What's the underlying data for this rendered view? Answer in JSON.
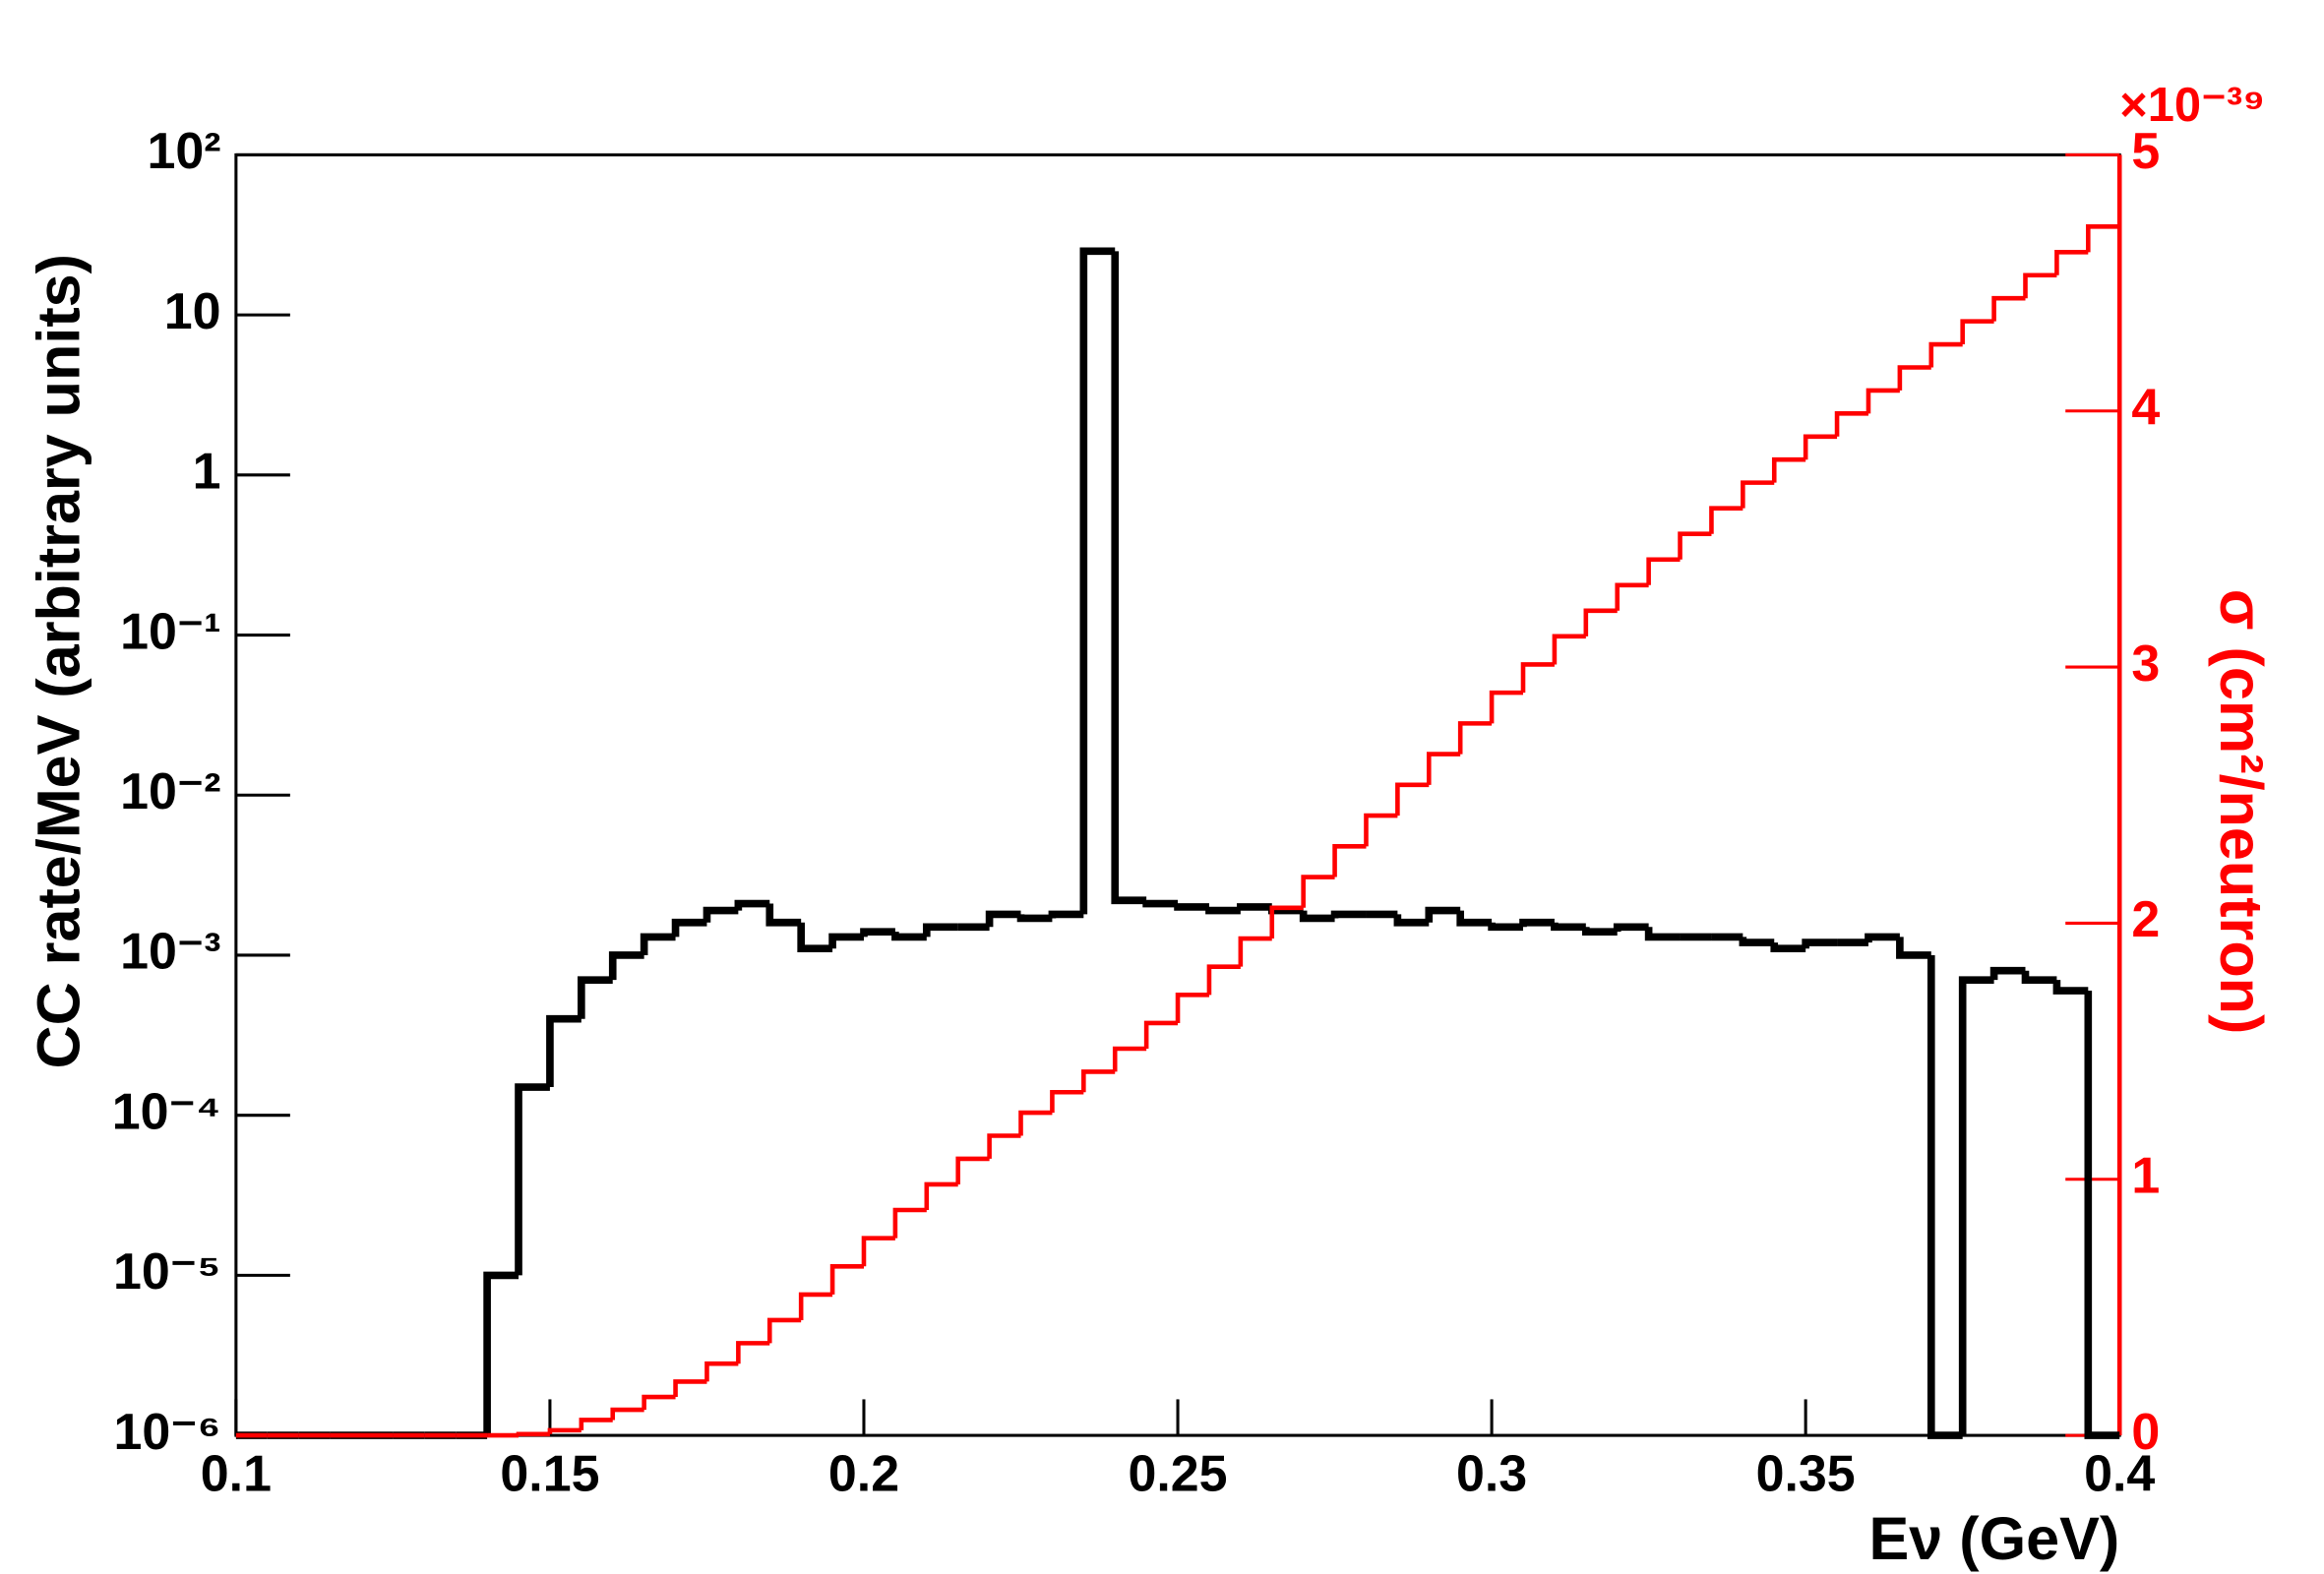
{
  "chart_data": {
    "type": "histogram",
    "x_label": "Eν (GeV)",
    "y_label": "CC rate/MeV (arbitrary units)",
    "y2_label": "σ (cm²/neutron)",
    "y2_exponent": "×10⁻³⁹",
    "bins": [
      0.1,
      0.105,
      0.11,
      0.115,
      0.12,
      0.125,
      0.13,
      0.135,
      0.14,
      0.145,
      0.15,
      0.155,
      0.16,
      0.165,
      0.17,
      0.175,
      0.18,
      0.185,
      0.19,
      0.195,
      0.2,
      0.205,
      0.21,
      0.215,
      0.22,
      0.225,
      0.23,
      0.235,
      0.24,
      0.245,
      0.25,
      0.255,
      0.26,
      0.265,
      0.27,
      0.275,
      0.28,
      0.285,
      0.29,
      0.295,
      0.3,
      0.305,
      0.31,
      0.315,
      0.32,
      0.325,
      0.33,
      0.335,
      0.34,
      0.345,
      0.35,
      0.355,
      0.36,
      0.365,
      0.37,
      0.375,
      0.38,
      0.385,
      0.39,
      0.395,
      0.4
    ],
    "series": [
      {
        "color": "#000000",
        "axis": "y",
        "values": [
          0,
          0,
          0,
          0,
          0,
          0,
          0,
          0,
          1e-05,
          0.00015,
          0.0004,
          0.0007,
          0.001,
          0.0013,
          0.0016,
          0.0019,
          0.0021,
          0.0016,
          0.0011,
          0.0013,
          0.0014,
          0.0013,
          0.0015,
          0.0015,
          0.0018,
          0.0017,
          0.0018,
          25,
          0.0022,
          0.0021,
          0.002,
          0.0019,
          0.002,
          0.0019,
          0.0017,
          0.0018,
          0.0018,
          0.0016,
          0.0019,
          0.0016,
          0.0015,
          0.0016,
          0.0015,
          0.0014,
          0.0015,
          0.0013,
          0.0013,
          0.0013,
          0.0012,
          0.0011,
          0.0012,
          0.0012,
          0.0013,
          0.001,
          0,
          0.0007,
          0.0008,
          0.0007,
          0.0006,
          0
        ]
      },
      {
        "color": "#ff0000",
        "axis": "y2",
        "values": [
          0,
          0,
          0,
          0,
          0,
          0,
          0,
          0,
          0,
          0.005,
          0.02,
          0.06,
          0.1,
          0.15,
          0.21,
          0.28,
          0.36,
          0.45,
          0.55,
          0.66,
          0.77,
          0.88,
          0.98,
          1.08,
          1.17,
          1.26,
          1.34,
          1.42,
          1.51,
          1.61,
          1.72,
          1.83,
          1.94,
          2.06,
          2.18,
          2.3,
          2.42,
          2.54,
          2.66,
          2.78,
          2.9,
          3.01,
          3.12,
          3.22,
          3.32,
          3.42,
          3.52,
          3.62,
          3.72,
          3.81,
          3.9,
          3.99,
          4.08,
          4.17,
          4.26,
          4.35,
          4.44,
          4.53,
          4.62,
          4.72
        ]
      }
    ],
    "xlim": [
      0.1,
      0.4
    ],
    "xticks": [
      0.1,
      0.15,
      0.2,
      0.25,
      0.3,
      0.35,
      0.4
    ],
    "ylim": [
      1e-06,
      100
    ],
    "ylog": true,
    "yticks": [
      {
        "value": 1e-06,
        "label": "10⁻⁶"
      },
      {
        "value": 1e-05,
        "label": "10⁻⁵"
      },
      {
        "value": 0.0001,
        "label": "10⁻⁴"
      },
      {
        "value": 0.001,
        "label": "10⁻³"
      },
      {
        "value": 0.01,
        "label": "10⁻²"
      },
      {
        "value": 0.1,
        "label": "10⁻¹"
      },
      1,
      10,
      {
        "value": 100,
        "label": "10²"
      }
    ],
    "y2lim": [
      0,
      5
    ],
    "y2ticks": [
      0,
      1,
      2,
      3,
      4,
      5
    ],
    "y2color": "#ff0000"
  }
}
